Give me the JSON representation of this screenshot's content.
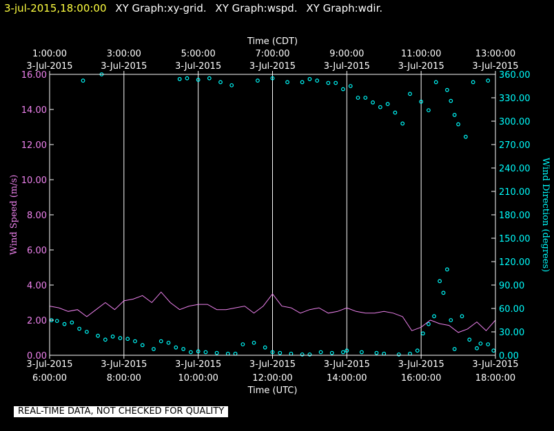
{
  "header": {
    "timestamp": "3-jul-2015,18:00:00",
    "graphs": [
      "XY Graph:xy-grid.",
      "XY Graph:wspd.",
      "XY Graph:wdir."
    ]
  },
  "footer_note": "REAL-TIME DATA, NOT CHECKED FOR QUALITY",
  "colors": {
    "wspd": "#ee82ee",
    "wdir": "#00ffff",
    "axis": "#ffffff",
    "grid": "#ffffff",
    "background": "#000000"
  },
  "chart_data": {
    "type": "line",
    "x_top_label": "Time (CDT)",
    "x_bottom_label": "Time (UTC)",
    "x_range_utc_hours": [
      6,
      18
    ],
    "top_ticks": [
      {
        "time": "1:00:00",
        "date": "3-Jul-2015"
      },
      {
        "time": "3:00:00",
        "date": "3-Jul-2015"
      },
      {
        "time": "5:00:00",
        "date": "3-Jul-2015"
      },
      {
        "time": "7:00:00",
        "date": "3-Jul-2015"
      },
      {
        "time": "9:00:00",
        "date": "3-Jul-2015"
      },
      {
        "time": "11:00:00",
        "date": "3-Jul-2015"
      },
      {
        "time": "13:00:00",
        "date": "3-Jul-2015"
      }
    ],
    "bottom_ticks": [
      {
        "date": "3-Jul-2015",
        "time": "6:00:00"
      },
      {
        "date": "3-Jul-2015",
        "time": "8:00:00"
      },
      {
        "date": "3-Jul-2015",
        "time": "10:00:00"
      },
      {
        "date": "3-Jul-2015",
        "time": "12:00:00"
      },
      {
        "date": "3-Jul-2015",
        "time": "14:00:00"
      },
      {
        "date": "3-Jul-2015",
        "time": "16:00:00"
      },
      {
        "date": "3-Jul-2015",
        "time": "18:00:00"
      }
    ],
    "left_axis": {
      "label": "Wind Speed (m/s)",
      "ylim": [
        0,
        16
      ],
      "ticks": [
        "0.00",
        "2.00",
        "4.00",
        "6.00",
        "8.00",
        "10.00",
        "12.00",
        "14.00",
        "16.00"
      ]
    },
    "right_axis": {
      "label": "Wind Direction (degrees)",
      "ylim": [
        0,
        360
      ],
      "ticks": [
        "0.00",
        "30.00",
        "60.00",
        "90.00",
        "120.00",
        "150.00",
        "180.00",
        "210.00",
        "240.00",
        "270.00",
        "300.00",
        "330.00",
        "360.00"
      ]
    },
    "vertical_grid_utc_hours": [
      8,
      10,
      12,
      14,
      16
    ],
    "series": [
      {
        "key": "wspd",
        "style": "line",
        "axis": "left",
        "x": [
          6.0,
          6.25,
          6.5,
          6.75,
          7.0,
          7.25,
          7.5,
          7.75,
          8.0,
          8.25,
          8.5,
          8.75,
          9.0,
          9.25,
          9.5,
          9.75,
          10.0,
          10.25,
          10.5,
          10.75,
          11.0,
          11.25,
          11.5,
          11.75,
          12.0,
          12.25,
          12.5,
          12.75,
          13.0,
          13.25,
          13.5,
          13.75,
          14.0,
          14.25,
          14.5,
          14.75,
          15.0,
          15.25,
          15.5,
          15.75,
          16.0,
          16.25,
          16.5,
          16.75,
          17.0,
          17.25,
          17.5,
          17.75,
          18.0
        ],
        "values": [
          2.8,
          2.7,
          2.5,
          2.6,
          2.2,
          2.6,
          3.0,
          2.6,
          3.1,
          3.2,
          3.4,
          3.0,
          3.6,
          3.0,
          2.6,
          2.8,
          2.9,
          2.9,
          2.6,
          2.6,
          2.7,
          2.8,
          2.4,
          2.8,
          3.5,
          2.8,
          2.7,
          2.4,
          2.6,
          2.7,
          2.4,
          2.5,
          2.7,
          2.5,
          2.4,
          2.4,
          2.5,
          2.4,
          2.2,
          1.4,
          1.6,
          2.0,
          1.8,
          1.7,
          1.3,
          1.5,
          1.9,
          1.4,
          2.0
        ]
      },
      {
        "key": "wdir",
        "style": "scatter",
        "axis": "right",
        "x": [
          6.05,
          6.2,
          6.4,
          6.6,
          6.8,
          7.0,
          7.3,
          7.5,
          7.7,
          7.9,
          8.1,
          8.3,
          8.5,
          8.8,
          9.0,
          9.2,
          9.4,
          9.6,
          9.8,
          10.0,
          10.2,
          10.5,
          10.8,
          11.0,
          11.2,
          11.5,
          11.8,
          12.0,
          12.2,
          12.5,
          12.8,
          13.0,
          13.3,
          13.6,
          13.9,
          14.0,
          14.4,
          14.8,
          15.0,
          15.4,
          15.7,
          15.9,
          16.05,
          16.2,
          16.35,
          16.5,
          16.6,
          16.7,
          16.8,
          16.9,
          17.1,
          17.3,
          17.5,
          17.6,
          17.8,
          17.95,
          9.5,
          9.7,
          10.0,
          10.3,
          10.6,
          10.9,
          11.6,
          12.0,
          12.4,
          12.8,
          13.0,
          13.2,
          13.5,
          13.7,
          13.9,
          14.1,
          14.3,
          14.5,
          14.7,
          14.9,
          15.1,
          15.3,
          15.5,
          15.7,
          16.0,
          16.2,
          16.4,
          16.7,
          16.8,
          16.9,
          17.0,
          17.2,
          17.4,
          17.8,
          6.9,
          7.4
        ],
        "values": [
          45,
          44,
          40,
          42,
          34,
          30,
          25,
          20,
          24,
          22,
          21,
          18,
          13,
          8,
          18,
          16,
          10,
          8,
          4,
          5,
          4,
          3,
          2,
          2,
          14,
          16,
          10,
          4,
          3,
          2,
          1,
          1,
          4,
          3,
          4,
          6,
          4,
          3,
          2,
          1,
          2,
          6,
          28,
          40,
          50,
          95,
          80,
          110,
          45,
          8,
          50,
          20,
          9,
          15,
          14,
          6,
          354,
          355,
          353,
          355,
          350,
          346,
          352,
          355,
          350,
          350,
          354,
          352,
          349,
          349,
          341,
          345,
          330,
          330,
          324,
          318,
          322,
          311,
          297,
          335,
          325,
          314,
          350,
          340,
          326,
          308,
          296,
          280,
          350,
          352,
          352,
          360
        ]
      }
    ]
  }
}
